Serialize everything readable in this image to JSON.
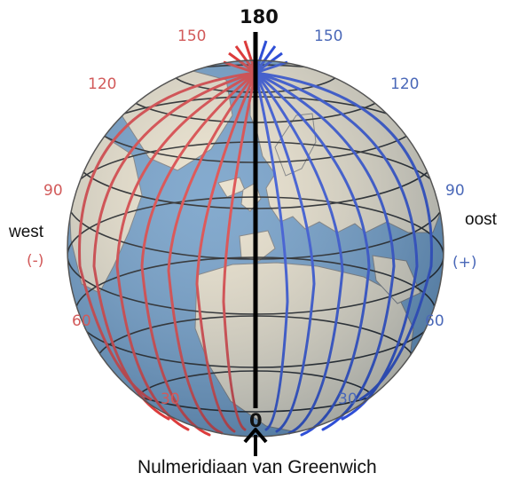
{
  "top_label": "180",
  "bottom_label": "0",
  "west": {
    "word": "west",
    "sign": "(-)",
    "degrees": [
      "150",
      "120",
      "90",
      "60",
      "30"
    ]
  },
  "east": {
    "word": "oost",
    "sign": "(+)",
    "degrees": [
      "150",
      "120",
      "90",
      "60",
      "30"
    ]
  },
  "caption": "Nulmeridiaan van Greenwich",
  "colors": {
    "west_meridian": "#dc3c3c",
    "east_meridian": "#2f4fd6",
    "ocean": "#6f9cc6",
    "land": "#e9dfc8",
    "prime_meridian": "#000000"
  }
}
